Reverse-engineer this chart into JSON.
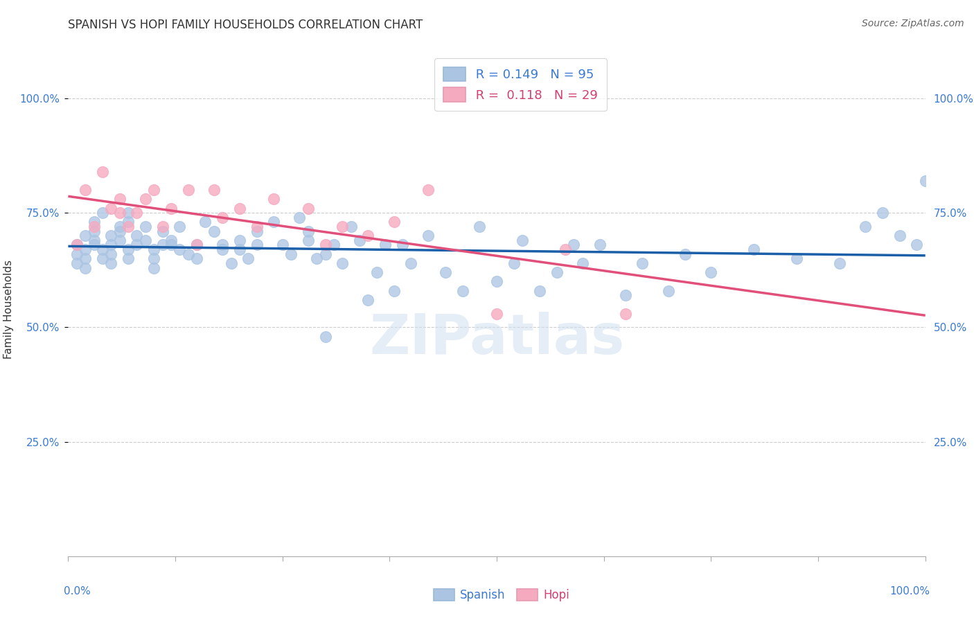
{
  "title": "SPANISH VS HOPI FAMILY HOUSEHOLDS CORRELATION CHART",
  "source": "Source: ZipAtlas.com",
  "ylabel": "Family Households",
  "ytick_labels": [
    "25.0%",
    "50.0%",
    "75.0%",
    "100.0%"
  ],
  "ytick_values": [
    25,
    50,
    75,
    100
  ],
  "xlim": [
    0,
    100
  ],
  "ylim": [
    0,
    108
  ],
  "legend_spanish_R": "0.149",
  "legend_spanish_N": "95",
  "legend_hopi_R": "0.118",
  "legend_hopi_N": "29",
  "spanish_color": "#aac4e2",
  "hopi_color": "#f5aac0",
  "line_spanish_color": "#1a5fa8",
  "line_hopi_color": "#e0507a",
  "spanish_x": [
    1,
    1,
    1,
    2,
    2,
    2,
    2,
    3,
    3,
    3,
    3,
    4,
    4,
    4,
    5,
    5,
    5,
    5,
    6,
    6,
    6,
    7,
    7,
    7,
    7,
    8,
    8,
    9,
    9,
    10,
    10,
    10,
    11,
    11,
    12,
    12,
    13,
    13,
    14,
    15,
    15,
    16,
    17,
    18,
    18,
    19,
    20,
    20,
    21,
    22,
    22,
    24,
    25,
    26,
    27,
    28,
    28,
    29,
    30,
    30,
    31,
    32,
    33,
    34,
    35,
    36,
    37,
    38,
    39,
    40,
    42,
    44,
    46,
    48,
    50,
    52,
    53,
    55,
    57,
    59,
    60,
    62,
    65,
    67,
    70,
    72,
    75,
    80,
    85,
    90,
    93,
    95,
    97,
    99,
    100
  ],
  "spanish_y": [
    68,
    66,
    64,
    67,
    65,
    63,
    70,
    71,
    69,
    73,
    68,
    75,
    65,
    67,
    70,
    68,
    64,
    66,
    69,
    72,
    71,
    73,
    75,
    67,
    65,
    70,
    68,
    69,
    72,
    67,
    65,
    63,
    71,
    68,
    69,
    68,
    72,
    67,
    66,
    68,
    65,
    73,
    71,
    68,
    67,
    64,
    67,
    69,
    65,
    71,
    68,
    73,
    68,
    66,
    74,
    71,
    69,
    65,
    66,
    48,
    68,
    64,
    72,
    69,
    56,
    62,
    68,
    58,
    68,
    64,
    70,
    62,
    58,
    72,
    60,
    64,
    69,
    58,
    62,
    68,
    64,
    68,
    57,
    64,
    58,
    66,
    62,
    67,
    65,
    64,
    72,
    75,
    70,
    68,
    82
  ],
  "hopi_x": [
    1,
    2,
    3,
    4,
    5,
    6,
    6,
    7,
    8,
    9,
    10,
    11,
    12,
    14,
    15,
    17,
    18,
    20,
    22,
    24,
    28,
    30,
    32,
    35,
    38,
    42,
    50,
    58,
    65
  ],
  "hopi_y": [
    68,
    80,
    72,
    84,
    76,
    78,
    75,
    72,
    75,
    78,
    80,
    72,
    76,
    80,
    68,
    80,
    74,
    76,
    72,
    78,
    76,
    68,
    72,
    70,
    73,
    80,
    53,
    67,
    53
  ],
  "watermark": "ZIPatlas",
  "background_color": "#ffffff",
  "grid_color": "#cccccc"
}
